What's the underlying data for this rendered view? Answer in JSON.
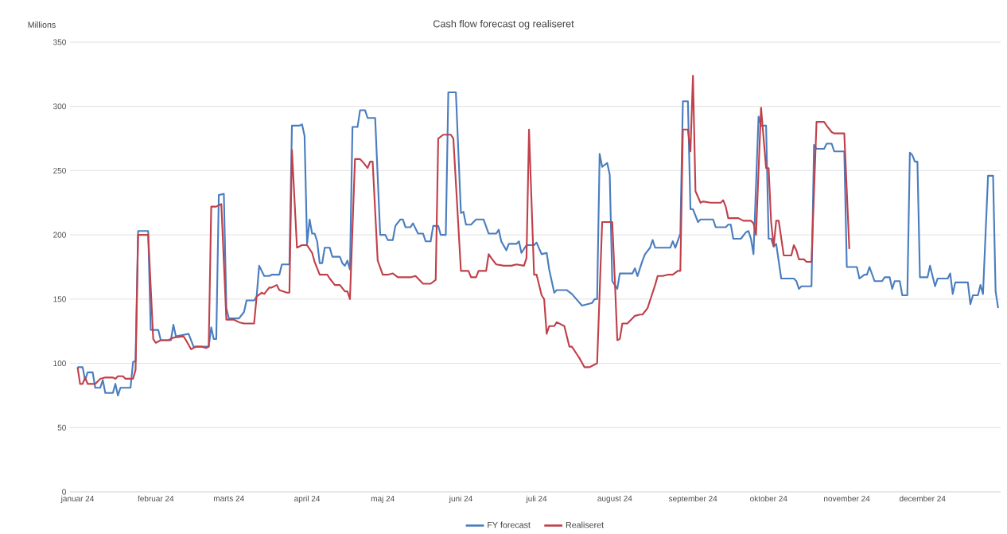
{
  "chart_data": {
    "type": "line",
    "title": "Cash flow forecast og realiseret",
    "ylabel": "Millions",
    "xlim": [
      "2023-12-29",
      "2025-01-01"
    ],
    "ylim": [
      0,
      350
    ],
    "yticks": [
      0,
      50,
      100,
      150,
      200,
      250,
      300,
      350
    ],
    "xticks": [
      {
        "value": "2024-01-01",
        "label": "januar 24"
      },
      {
        "value": "2024-02-01",
        "label": "februar 24"
      },
      {
        "value": "2024-03-01",
        "label": "marts 24"
      },
      {
        "value": "2024-04-01",
        "label": "april 24"
      },
      {
        "value": "2024-05-01",
        "label": "maj 24"
      },
      {
        "value": "2024-06-01",
        "label": "juni 24"
      },
      {
        "value": "2024-07-01",
        "label": "juli 24"
      },
      {
        "value": "2024-08-01",
        "label": "august 24"
      },
      {
        "value": "2024-09-01",
        "label": "september 24"
      },
      {
        "value": "2024-10-01",
        "label": "oktober 24"
      },
      {
        "value": "2024-11-01",
        "label": "november 24"
      },
      {
        "value": "2024-12-01",
        "label": "december 24"
      }
    ],
    "grid": "y",
    "legend": "bottom",
    "marker": "none",
    "line_style": "solid",
    "series": [
      {
        "name": "FY forecast",
        "color": "#4a7dbf",
        "x": [
          "2024-01-01",
          "2024-01-03",
          "2024-01-04",
          "2024-01-05",
          "2024-01-07",
          "2024-01-08",
          "2024-01-10",
          "2024-01-11",
          "2024-01-12",
          "2024-01-15",
          "2024-01-16",
          "2024-01-17",
          "2024-01-18",
          "2024-01-22",
          "2024-01-23",
          "2024-01-24",
          "2024-01-25",
          "2024-01-29",
          "2024-01-30",
          "2024-02-02",
          "2024-02-03",
          "2024-02-07",
          "2024-02-08",
          "2024-02-09",
          "2024-02-14",
          "2024-02-16",
          "2024-02-22",
          "2024-02-23",
          "2024-02-24",
          "2024-02-25",
          "2024-02-26",
          "2024-02-28",
          "2024-02-29",
          "2024-03-01",
          "2024-03-05",
          "2024-03-07",
          "2024-03-08",
          "2024-03-11",
          "2024-03-12",
          "2024-03-13",
          "2024-03-15",
          "2024-03-17",
          "2024-03-18",
          "2024-03-21",
          "2024-03-22",
          "2024-03-25",
          "2024-03-26",
          "2024-03-29",
          "2024-03-30",
          "2024-03-31",
          "2024-04-01",
          "2024-04-02",
          "2024-04-03",
          "2024-04-04",
          "2024-04-05",
          "2024-04-06",
          "2024-04-07",
          "2024-04-08",
          "2024-04-10",
          "2024-04-11",
          "2024-04-14",
          "2024-04-15",
          "2024-04-16",
          "2024-04-17",
          "2024-04-18",
          "2024-04-19",
          "2024-04-21",
          "2024-04-22",
          "2024-04-24",
          "2024-04-25",
          "2024-04-28",
          "2024-04-30",
          "2024-05-02",
          "2024-05-03",
          "2024-05-05",
          "2024-05-06",
          "2024-05-08",
          "2024-05-09",
          "2024-05-10",
          "2024-05-12",
          "2024-05-13",
          "2024-05-15",
          "2024-05-17",
          "2024-05-18",
          "2024-05-20",
          "2024-05-21",
          "2024-05-23",
          "2024-05-24",
          "2024-05-26",
          "2024-05-27",
          "2024-05-30",
          "2024-06-01",
          "2024-06-02",
          "2024-06-03",
          "2024-06-05",
          "2024-06-07",
          "2024-06-10",
          "2024-06-12",
          "2024-06-15",
          "2024-06-16",
          "2024-06-17",
          "2024-06-19",
          "2024-06-20",
          "2024-06-23",
          "2024-06-24",
          "2024-06-25",
          "2024-06-27",
          "2024-06-30",
          "2024-07-01",
          "2024-07-03",
          "2024-07-05",
          "2024-07-06",
          "2024-07-08",
          "2024-07-09",
          "2024-07-13",
          "2024-07-15",
          "2024-07-19",
          "2024-07-23",
          "2024-07-24",
          "2024-07-25",
          "2024-07-26",
          "2024-07-27",
          "2024-07-29",
          "2024-07-30",
          "2024-07-31",
          "2024-08-02",
          "2024-08-03",
          "2024-08-08",
          "2024-08-09",
          "2024-08-10",
          "2024-08-12",
          "2024-08-13",
          "2024-08-15",
          "2024-08-16",
          "2024-08-17",
          "2024-08-23",
          "2024-08-24",
          "2024-08-25",
          "2024-08-27",
          "2024-08-28",
          "2024-08-30",
          "2024-08-31",
          "2024-09-01",
          "2024-09-03",
          "2024-09-04",
          "2024-09-09",
          "2024-09-10",
          "2024-09-14",
          "2024-09-15",
          "2024-09-16",
          "2024-09-17",
          "2024-09-20",
          "2024-09-22",
          "2024-09-23",
          "2024-09-24",
          "2024-09-25",
          "2024-09-27",
          "2024-09-28",
          "2024-09-30",
          "2024-10-01",
          "2024-10-02",
          "2024-10-03",
          "2024-10-04",
          "2024-10-06",
          "2024-10-11",
          "2024-10-12",
          "2024-10-13",
          "2024-10-14",
          "2024-10-18",
          "2024-10-19",
          "2024-10-20",
          "2024-10-23",
          "2024-10-24",
          "2024-10-26",
          "2024-10-27",
          "2024-10-31",
          "2024-11-01",
          "2024-11-05",
          "2024-11-06",
          "2024-11-08",
          "2024-11-09",
          "2024-11-10",
          "2024-11-12",
          "2024-11-15",
          "2024-11-16",
          "2024-11-18",
          "2024-11-19",
          "2024-11-20",
          "2024-11-22",
          "2024-11-23",
          "2024-11-25",
          "2024-11-26",
          "2024-11-27",
          "2024-11-28",
          "2024-11-29",
          "2024-11-30",
          "2024-12-03",
          "2024-12-04",
          "2024-12-06",
          "2024-12-07",
          "2024-12-11",
          "2024-12-12",
          "2024-12-13",
          "2024-12-14",
          "2024-12-19",
          "2024-12-20",
          "2024-12-21",
          "2024-12-23",
          "2024-12-24",
          "2024-12-25",
          "2024-12-27",
          "2024-12-29",
          "2024-12-30",
          "2024-12-31"
        ],
        "values": [
          97,
          97,
          87,
          93,
          93,
          81,
          81,
          87,
          77,
          77,
          84,
          75,
          81,
          81,
          101,
          102,
          203,
          203,
          126,
          126,
          118,
          118,
          130,
          121,
          123,
          113,
          113,
          128,
          119,
          119,
          231,
          232,
          143,
          135,
          135,
          140,
          149,
          149,
          152,
          176,
          168,
          168,
          169,
          169,
          177,
          177,
          285,
          285,
          286,
          277,
          193,
          212,
          201,
          201,
          195,
          178,
          178,
          190,
          190,
          183,
          183,
          178,
          176,
          180,
          173,
          284,
          284,
          297,
          297,
          291,
          291,
          200,
          200,
          196,
          196,
          207,
          212,
          212,
          206,
          206,
          209,
          201,
          201,
          195,
          195,
          207,
          207,
          200,
          200,
          311,
          311,
          217,
          218,
          208,
          208,
          212,
          212,
          201,
          201,
          204,
          195,
          188,
          193,
          193,
          195,
          186,
          192,
          192,
          194,
          185,
          186,
          173,
          155,
          157,
          157,
          154,
          145,
          147,
          150,
          150,
          263,
          253,
          256,
          247,
          164,
          158,
          170,
          170,
          174,
          168,
          180,
          185,
          190,
          196,
          190,
          190,
          195,
          190,
          201,
          304,
          304,
          220,
          220,
          210,
          212,
          212,
          206,
          206,
          208,
          208,
          197,
          197,
          202,
          203,
          197,
          185,
          292,
          285,
          285,
          197,
          197,
          191,
          193,
          166,
          166,
          164,
          158,
          160,
          160,
          270,
          267,
          267,
          271,
          271,
          265,
          265,
          175,
          175,
          166,
          169,
          169,
          175,
          164,
          164,
          167,
          167,
          158,
          164,
          164,
          153,
          153,
          264,
          262,
          257,
          257,
          167,
          167,
          176,
          160,
          166,
          166,
          170,
          154,
          163,
          163,
          146,
          153,
          153,
          161,
          154,
          246,
          246,
          156,
          143
        ]
      },
      {
        "name": "Realiseret",
        "color": "#c0404a",
        "x": [
          "2024-01-01",
          "2024-01-02",
          "2024-01-03",
          "2024-01-04",
          "2024-01-05",
          "2024-01-08",
          "2024-01-10",
          "2024-01-12",
          "2024-01-15",
          "2024-01-16",
          "2024-01-17",
          "2024-01-19",
          "2024-01-20",
          "2024-01-23",
          "2024-01-24",
          "2024-01-25",
          "2024-01-29",
          "2024-01-31",
          "2024-02-01",
          "2024-02-03",
          "2024-02-06",
          "2024-02-08",
          "2024-02-12",
          "2024-02-13",
          "2024-02-15",
          "2024-02-17",
          "2024-02-19",
          "2024-02-21",
          "2024-02-22",
          "2024-02-23",
          "2024-02-25",
          "2024-02-27",
          "2024-02-29",
          "2024-03-03",
          "2024-03-05",
          "2024-03-07",
          "2024-03-11",
          "2024-03-12",
          "2024-03-14",
          "2024-03-15",
          "2024-03-17",
          "2024-03-18",
          "2024-03-20",
          "2024-03-21",
          "2024-03-24",
          "2024-03-25",
          "2024-03-26",
          "2024-03-28",
          "2024-03-30",
          "2024-04-01",
          "2024-04-03",
          "2024-04-04",
          "2024-04-06",
          "2024-04-09",
          "2024-04-10",
          "2024-04-12",
          "2024-04-14",
          "2024-04-16",
          "2024-04-17",
          "2024-04-18",
          "2024-04-20",
          "2024-04-22",
          "2024-04-23",
          "2024-04-25",
          "2024-04-26",
          "2024-04-27",
          "2024-04-29",
          "2024-05-01",
          "2024-05-03",
          "2024-05-05",
          "2024-05-07",
          "2024-05-12",
          "2024-05-14",
          "2024-05-17",
          "2024-05-20",
          "2024-05-22",
          "2024-05-23",
          "2024-05-25",
          "2024-05-28",
          "2024-05-29",
          "2024-06-01",
          "2024-06-04",
          "2024-06-05",
          "2024-06-07",
          "2024-06-08",
          "2024-06-11",
          "2024-06-12",
          "2024-06-13",
          "2024-06-15",
          "2024-06-18",
          "2024-06-21",
          "2024-06-23",
          "2024-06-26",
          "2024-06-27",
          "2024-06-28",
          "2024-06-30",
          "2024-07-01",
          "2024-07-03",
          "2024-07-04",
          "2024-07-05",
          "2024-07-06",
          "2024-07-08",
          "2024-07-09",
          "2024-07-12",
          "2024-07-14",
          "2024-07-15",
          "2024-07-17",
          "2024-07-18",
          "2024-07-20",
          "2024-07-22",
          "2024-07-23",
          "2024-07-25",
          "2024-07-27",
          "2024-07-31",
          "2024-08-01",
          "2024-08-02",
          "2024-08-03",
          "2024-08-04",
          "2024-08-06",
          "2024-08-08",
          "2024-08-09",
          "2024-08-11",
          "2024-08-12",
          "2024-08-14",
          "2024-08-16",
          "2024-08-17",
          "2024-08-18",
          "2024-08-20",
          "2024-08-22",
          "2024-08-24",
          "2024-08-26",
          "2024-08-27",
          "2024-08-28",
          "2024-08-30",
          "2024-08-31",
          "2024-09-01",
          "2024-09-02",
          "2024-09-04",
          "2024-09-05",
          "2024-09-08",
          "2024-09-12",
          "2024-09-13",
          "2024-09-14",
          "2024-09-15",
          "2024-09-19",
          "2024-09-21",
          "2024-09-24",
          "2024-09-25",
          "2024-09-26",
          "2024-09-28",
          "2024-09-30",
          "2024-10-01",
          "2024-10-02",
          "2024-10-03",
          "2024-10-04",
          "2024-10-05",
          "2024-10-07",
          "2024-10-10",
          "2024-10-11",
          "2024-10-12",
          "2024-10-13",
          "2024-10-15",
          "2024-10-16",
          "2024-10-18",
          "2024-10-20",
          "2024-10-23",
          "2024-10-24",
          "2024-10-26",
          "2024-10-27",
          "2024-10-31",
          "2024-11-02"
        ],
        "values": [
          97,
          84,
          84,
          89,
          84,
          84,
          88,
          89,
          89,
          88,
          90,
          90,
          88,
          88,
          95,
          200,
          200,
          119,
          116,
          118,
          118,
          120,
          121,
          118,
          111,
          113,
          113,
          112,
          113,
          222,
          222,
          224,
          134,
          134,
          132,
          131,
          131,
          152,
          155,
          154,
          159,
          159,
          161,
          157,
          155,
          155,
          266,
          190,
          192,
          192,
          186,
          179,
          169,
          169,
          166,
          161,
          161,
          156,
          156,
          150,
          259,
          259,
          257,
          252,
          257,
          257,
          180,
          169,
          169,
          170,
          167,
          167,
          168,
          162,
          162,
          165,
          275,
          278,
          278,
          275,
          172,
          172,
          167,
          167,
          172,
          172,
          185,
          182,
          177,
          176,
          176,
          177,
          176,
          182,
          282,
          169,
          169,
          153,
          150,
          123,
          129,
          129,
          132,
          129,
          113,
          113,
          107,
          104,
          97,
          97,
          98,
          100,
          210,
          210,
          166,
          118,
          119,
          131,
          131,
          135,
          137,
          138,
          138,
          143,
          155,
          161,
          168,
          168,
          169,
          169,
          172,
          172,
          282,
          282,
          265,
          324,
          234,
          225,
          226,
          225,
          225,
          227,
          222,
          213,
          213,
          211,
          211,
          209,
          200,
          299,
          252,
          252,
          210,
          191,
          211,
          211,
          184,
          184,
          192,
          188,
          181,
          181,
          179,
          179,
          288,
          288,
          285,
          280,
          279,
          279,
          189
        ]
      }
    ]
  }
}
